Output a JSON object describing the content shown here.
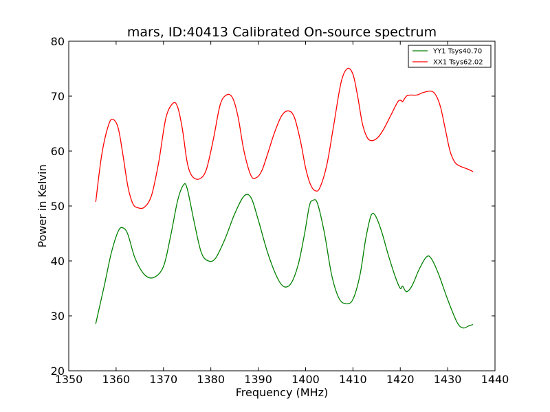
{
  "chart_data": {
    "type": "line",
    "title": "mars, ID:40413 Calibrated On-source spectrum",
    "xlabel": "Frequency (MHz)",
    "ylabel": "Power in Kelvin",
    "xlim": [
      1350,
      1440
    ],
    "ylim": [
      20,
      80
    ],
    "xticks": [
      "1350",
      "1360",
      "1370",
      "1380",
      "1390",
      "1400",
      "1410",
      "1420",
      "1430",
      "1440"
    ],
    "yticks": [
      "20",
      "30",
      "40",
      "50",
      "60",
      "70",
      "80"
    ],
    "grid": false,
    "legend_position": "top-right",
    "series": [
      {
        "name": "YY1 Tsys40.70",
        "color": "#008000",
        "x": [
          1355.7,
          1357.5,
          1359.0,
          1360.5,
          1361.5,
          1362.5,
          1364.0,
          1366.0,
          1368.0,
          1370.0,
          1371.5,
          1373.0,
          1374.2,
          1375.0,
          1376.5,
          1378.0,
          1379.5,
          1381.0,
          1383.0,
          1385.0,
          1387.0,
          1388.5,
          1390.0,
          1392.0,
          1394.0,
          1395.5,
          1397.0,
          1398.5,
          1399.8,
          1400.8,
          1401.5,
          1402.5,
          1404.0,
          1405.5,
          1407.0,
          1408.5,
          1410.0,
          1411.5,
          1412.7,
          1413.8,
          1414.7,
          1416.0,
          1417.5,
          1419.0,
          1420.0,
          1420.5,
          1421.3,
          1422.5,
          1424.0,
          1425.5,
          1426.5,
          1428.0,
          1430.0,
          1432.0,
          1433.3,
          1434.5,
          1435.3
        ],
        "y": [
          28.6,
          35.5,
          41.5,
          45.5,
          46.0,
          44.8,
          40.5,
          37.5,
          37.0,
          39.0,
          44.5,
          51.0,
          53.8,
          53.2,
          47.0,
          41.5,
          40.0,
          40.5,
          44.0,
          48.5,
          51.8,
          51.5,
          47.5,
          41.5,
          37.0,
          35.3,
          36.0,
          39.5,
          45.0,
          50.0,
          51.0,
          50.5,
          45.0,
          37.5,
          33.3,
          32.2,
          33.0,
          37.5,
          44.0,
          48.2,
          48.3,
          45.5,
          41.0,
          37.0,
          35.0,
          35.4,
          34.4,
          35.5,
          38.5,
          40.7,
          40.5,
          37.8,
          33.0,
          28.8,
          27.8,
          28.2,
          28.4
        ]
      },
      {
        "name": "XX1 Tsys62.02",
        "color": "#ff0000",
        "x": [
          1355.7,
          1357.0,
          1358.5,
          1359.5,
          1360.5,
          1361.5,
          1362.5,
          1363.5,
          1364.5,
          1366.0,
          1367.5,
          1369.0,
          1370.5,
          1372.0,
          1373.0,
          1374.0,
          1375.0,
          1376.0,
          1377.5,
          1379.0,
          1380.5,
          1382.0,
          1383.5,
          1384.7,
          1385.8,
          1387.0,
          1388.5,
          1389.7,
          1390.8,
          1392.0,
          1393.5,
          1395.0,
          1396.5,
          1397.7,
          1399.0,
          1400.0,
          1401.0,
          1402.0,
          1403.0,
          1404.5,
          1406.0,
          1407.5,
          1408.8,
          1410.0,
          1411.0,
          1412.0,
          1413.0,
          1414.0,
          1415.3,
          1416.5,
          1418.0,
          1419.5,
          1420.2,
          1420.5,
          1421.3,
          1422.2,
          1423.5,
          1425.0,
          1426.5,
          1427.5,
          1428.5,
          1429.5,
          1430.5,
          1431.5,
          1432.5,
          1434.0,
          1435.3
        ],
        "y": [
          50.8,
          59.5,
          65.0,
          65.7,
          64.0,
          59.0,
          53.5,
          50.5,
          49.7,
          49.8,
          52.0,
          58.0,
          66.0,
          68.7,
          68.0,
          64.0,
          58.0,
          55.5,
          54.9,
          56.5,
          62.0,
          68.5,
          70.3,
          69.5,
          66.0,
          60.0,
          55.5,
          55.2,
          56.5,
          59.5,
          63.5,
          66.5,
          67.3,
          66.0,
          61.5,
          57.0,
          54.0,
          52.8,
          53.3,
          57.5,
          65.0,
          72.5,
          75.0,
          74.0,
          70.0,
          65.0,
          62.5,
          61.9,
          62.5,
          64.0,
          66.5,
          69.0,
          69.2,
          69.0,
          70.0,
          70.2,
          70.2,
          70.7,
          70.9,
          70.2,
          68.0,
          64.0,
          60.0,
          58.0,
          57.3,
          56.8,
          56.3
        ]
      }
    ]
  }
}
